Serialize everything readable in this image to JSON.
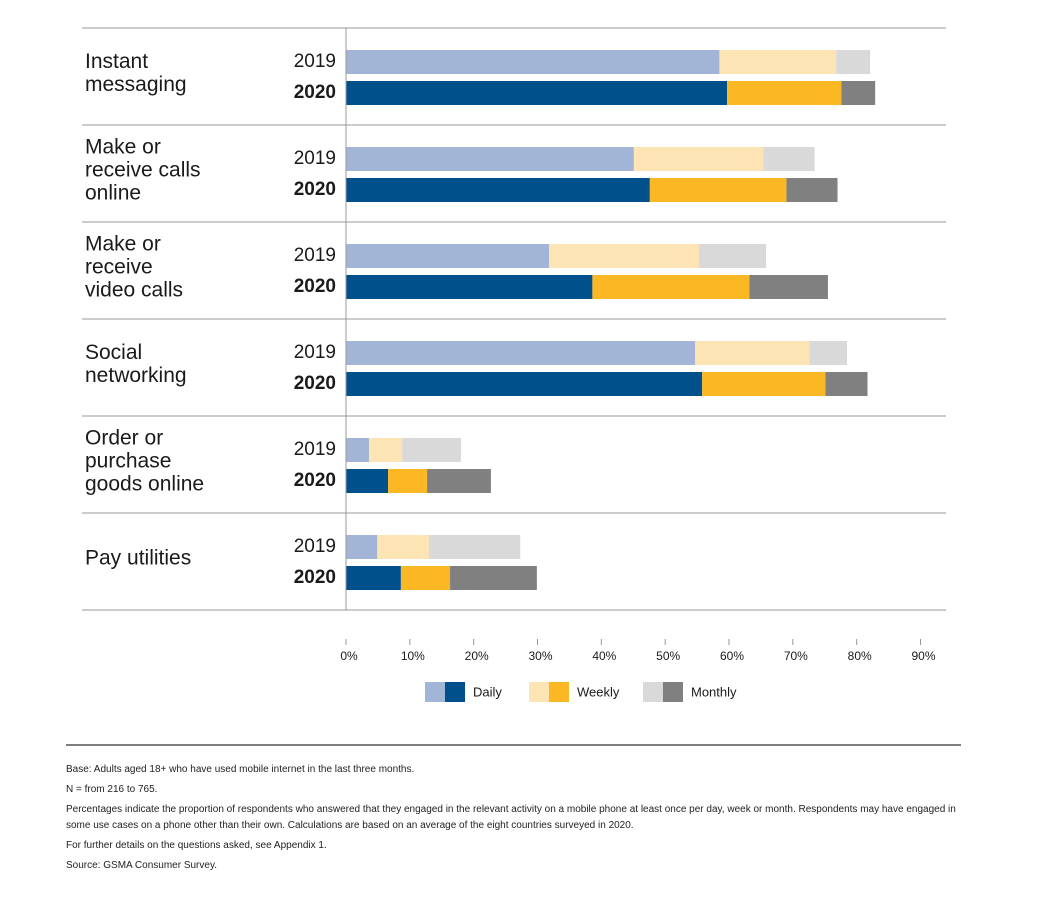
{
  "chart_data": {
    "type": "grouped-stacked-barh",
    "categories": [
      [
        "Instant",
        "messaging"
      ],
      [
        "Make or",
        "receive calls",
        "online"
      ],
      [
        "Make or",
        "receive",
        "video calls"
      ],
      [
        "Social",
        "networking"
      ],
      [
        "Order or",
        "purchase",
        "goods online"
      ],
      [
        "Pay utilities"
      ]
    ],
    "groups": [
      "2019",
      "2020"
    ],
    "series": [
      {
        "name": "Daily",
        "colors": [
          "#a3b5d7",
          "#00508c"
        ],
        "values": [
          [
            58.5,
            59.7
          ],
          [
            45.1,
            47.6
          ],
          [
            31.8,
            38.6
          ],
          [
            54.7,
            55.8
          ],
          [
            3.6,
            6.6
          ],
          [
            4.9,
            8.6
          ]
        ]
      },
      {
        "name": "Weekly",
        "colors": [
          "#fde4b5",
          "#fbb824"
        ],
        "values": [
          [
            18.3,
            17.9
          ],
          [
            20.3,
            21.4
          ],
          [
            23.5,
            24.6
          ],
          [
            17.9,
            19.3
          ],
          [
            5.2,
            6.1
          ],
          [
            8.1,
            7.7
          ]
        ]
      },
      {
        "name": "Monthly",
        "colors": [
          "#d9d9d9",
          "#808080"
        ],
        "values": [
          [
            5.3,
            5.3
          ],
          [
            8.0,
            8.0
          ],
          [
            10.5,
            12.3
          ],
          [
            5.9,
            6.6
          ],
          [
            9.2,
            10.0
          ],
          [
            14.3,
            13.6
          ]
        ]
      }
    ],
    "xlim": [
      0,
      90
    ],
    "xticks": [
      {
        "value": 0,
        "label": "0%"
      },
      {
        "value": 10,
        "label": "10%"
      },
      {
        "value": 20,
        "label": "20%"
      },
      {
        "value": 30,
        "label": "30%"
      },
      {
        "value": 40,
        "label": "40%"
      },
      {
        "value": 50,
        "label": "50%"
      },
      {
        "value": 60,
        "label": "60%"
      },
      {
        "value": 70,
        "label": "70%"
      },
      {
        "value": 80,
        "label": "80%"
      },
      {
        "value": 90,
        "label": "90%"
      }
    ],
    "notes": [
      "Base: Adults aged 18+ who have used mobile internet in the last three months.",
      "N = from 216 to 765.",
      "Percentages indicate the proportion of respondents who answered that they engaged in the relevant activity on a mobile phone at least once per day, week or month. Respondents may have engaged in some use cases on a phone other than their own. Calculations are based on an average of the eight countries surveyed in 2020.",
      "For further details on the questions asked, see Appendix 1.",
      "Source: GSMA Consumer Survey."
    ]
  }
}
